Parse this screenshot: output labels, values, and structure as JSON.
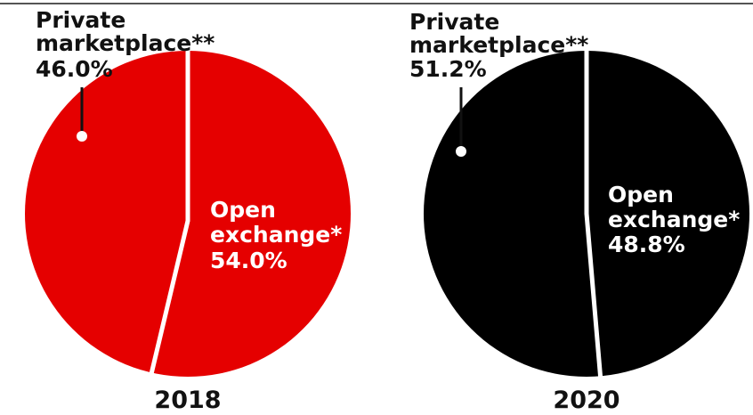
{
  "chart_data": [
    {
      "type": "pie",
      "title": "2018",
      "color": "#e50000",
      "slices": [
        {
          "label_lines": [
            "Private",
            "marketplace**"
          ],
          "value_label": "46.0%",
          "value": 46.0
        },
        {
          "label_lines": [
            "Open",
            "exchange*"
          ],
          "value_label": "54.0%",
          "value": 54.0
        }
      ]
    },
    {
      "type": "pie",
      "title": "2020",
      "color": "#000000",
      "slices": [
        {
          "label_lines": [
            "Private",
            "marketplace**"
          ],
          "value_label": "51.2%",
          "value": 51.2
        },
        {
          "label_lines": [
            "Open",
            "exchange*"
          ],
          "value_label": "48.8%",
          "value": 48.8
        }
      ]
    }
  ]
}
